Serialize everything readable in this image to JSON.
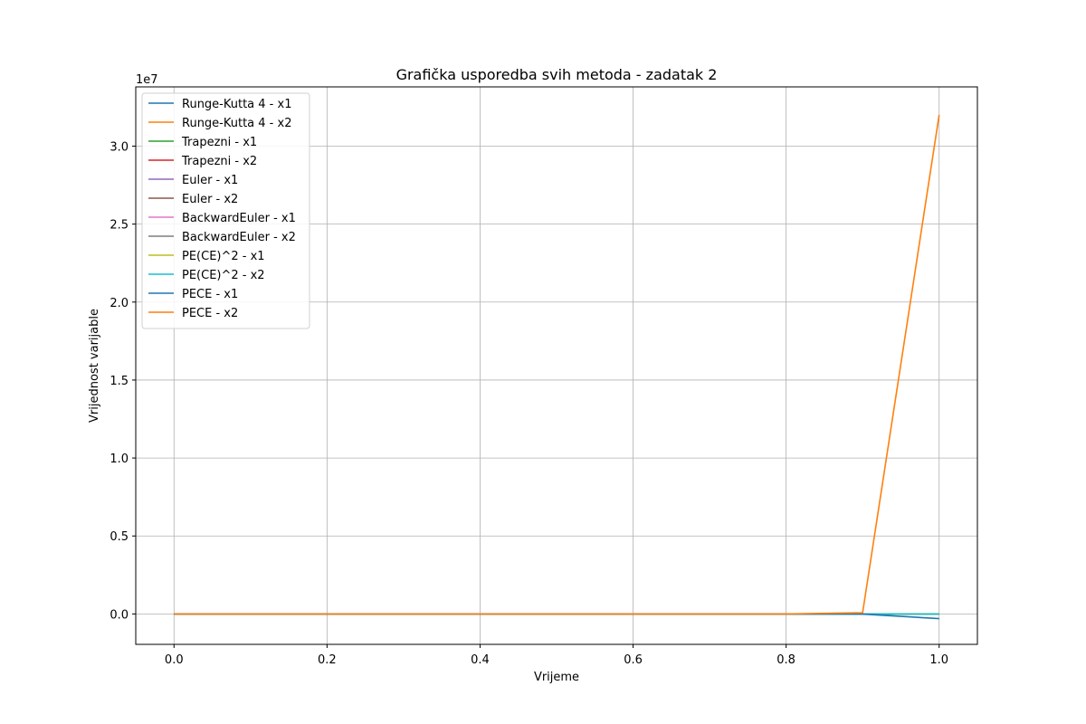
{
  "chart_data": {
    "type": "line",
    "title": "Grafička usporedba svih metoda - zadatak 2",
    "xlabel": "Vrijeme",
    "ylabel": "Vrijednost varijable",
    "y_offset_label": "1e7",
    "xlim": [
      -0.05,
      1.05
    ],
    "ylim": [
      -1950000,
      33800000
    ],
    "xticks": [
      0.0,
      0.2,
      0.4,
      0.6,
      0.8,
      1.0
    ],
    "xtick_labels": [
      "0.0",
      "0.2",
      "0.4",
      "0.6",
      "0.8",
      "1.0"
    ],
    "yticks": [
      0,
      5000000,
      10000000,
      15000000,
      20000000,
      25000000,
      30000000
    ],
    "ytick_labels": [
      "0.0",
      "0.5",
      "1.0",
      "1.5",
      "2.0",
      "2.5",
      "3.0"
    ],
    "grid": true,
    "legend_position": "top-left",
    "x": [
      0.0,
      0.1,
      0.2,
      0.3,
      0.4,
      0.5,
      0.6,
      0.7,
      0.8,
      0.9,
      1.0
    ],
    "series": [
      {
        "name": "Runge-Kutta 4 - x1",
        "color": "#1f77b4",
        "values": [
          0,
          0,
          0,
          0,
          0,
          0,
          0,
          0,
          0,
          0,
          0
        ]
      },
      {
        "name": "Runge-Kutta 4 - x2",
        "color": "#ff7f0e",
        "values": [
          0,
          0,
          0,
          0,
          0,
          0,
          0,
          0,
          0,
          0,
          0
        ]
      },
      {
        "name": "Trapezni - x1",
        "color": "#2ca02c",
        "values": [
          0,
          0,
          0,
          0,
          0,
          0,
          0,
          0,
          0,
          0,
          0
        ]
      },
      {
        "name": "Trapezni - x2",
        "color": "#d62728",
        "values": [
          0,
          0,
          0,
          0,
          0,
          0,
          0,
          0,
          0,
          0,
          0
        ]
      },
      {
        "name": "Euler - x1",
        "color": "#9467bd",
        "values": [
          0,
          0,
          0,
          0,
          0,
          0,
          0,
          0,
          0,
          0,
          0
        ]
      },
      {
        "name": "Euler - x2",
        "color": "#8c564b",
        "values": [
          0,
          0,
          0,
          0,
          0,
          0,
          0,
          0,
          0,
          0,
          0
        ]
      },
      {
        "name": "BackwardEuler - x1",
        "color": "#e377c2",
        "values": [
          0,
          0,
          0,
          0,
          0,
          0,
          0,
          0,
          0,
          0,
          0
        ]
      },
      {
        "name": "BackwardEuler - x2",
        "color": "#7f7f7f",
        "values": [
          0,
          0,
          0,
          0,
          0,
          0,
          0,
          0,
          0,
          0,
          0
        ]
      },
      {
        "name": "PE(CE)^2 - x1",
        "color": "#bcbd22",
        "values": [
          0,
          0,
          0,
          0,
          0,
          0,
          0,
          0,
          0,
          0,
          0
        ]
      },
      {
        "name": "PE(CE)^2 - x2",
        "color": "#17becf",
        "values": [
          0,
          0,
          0,
          0,
          0,
          0,
          0,
          0,
          0,
          0,
          0
        ]
      },
      {
        "name": "PECE - x1",
        "color": "#1f77b4",
        "values": [
          0,
          0,
          0,
          0,
          0,
          0,
          0,
          0,
          0,
          -10000,
          -300000
        ]
      },
      {
        "name": "PECE - x2",
        "color": "#ff7f0e",
        "values": [
          0,
          0,
          0,
          0,
          0,
          0,
          0,
          0,
          0,
          80000,
          32000000
        ]
      }
    ]
  }
}
